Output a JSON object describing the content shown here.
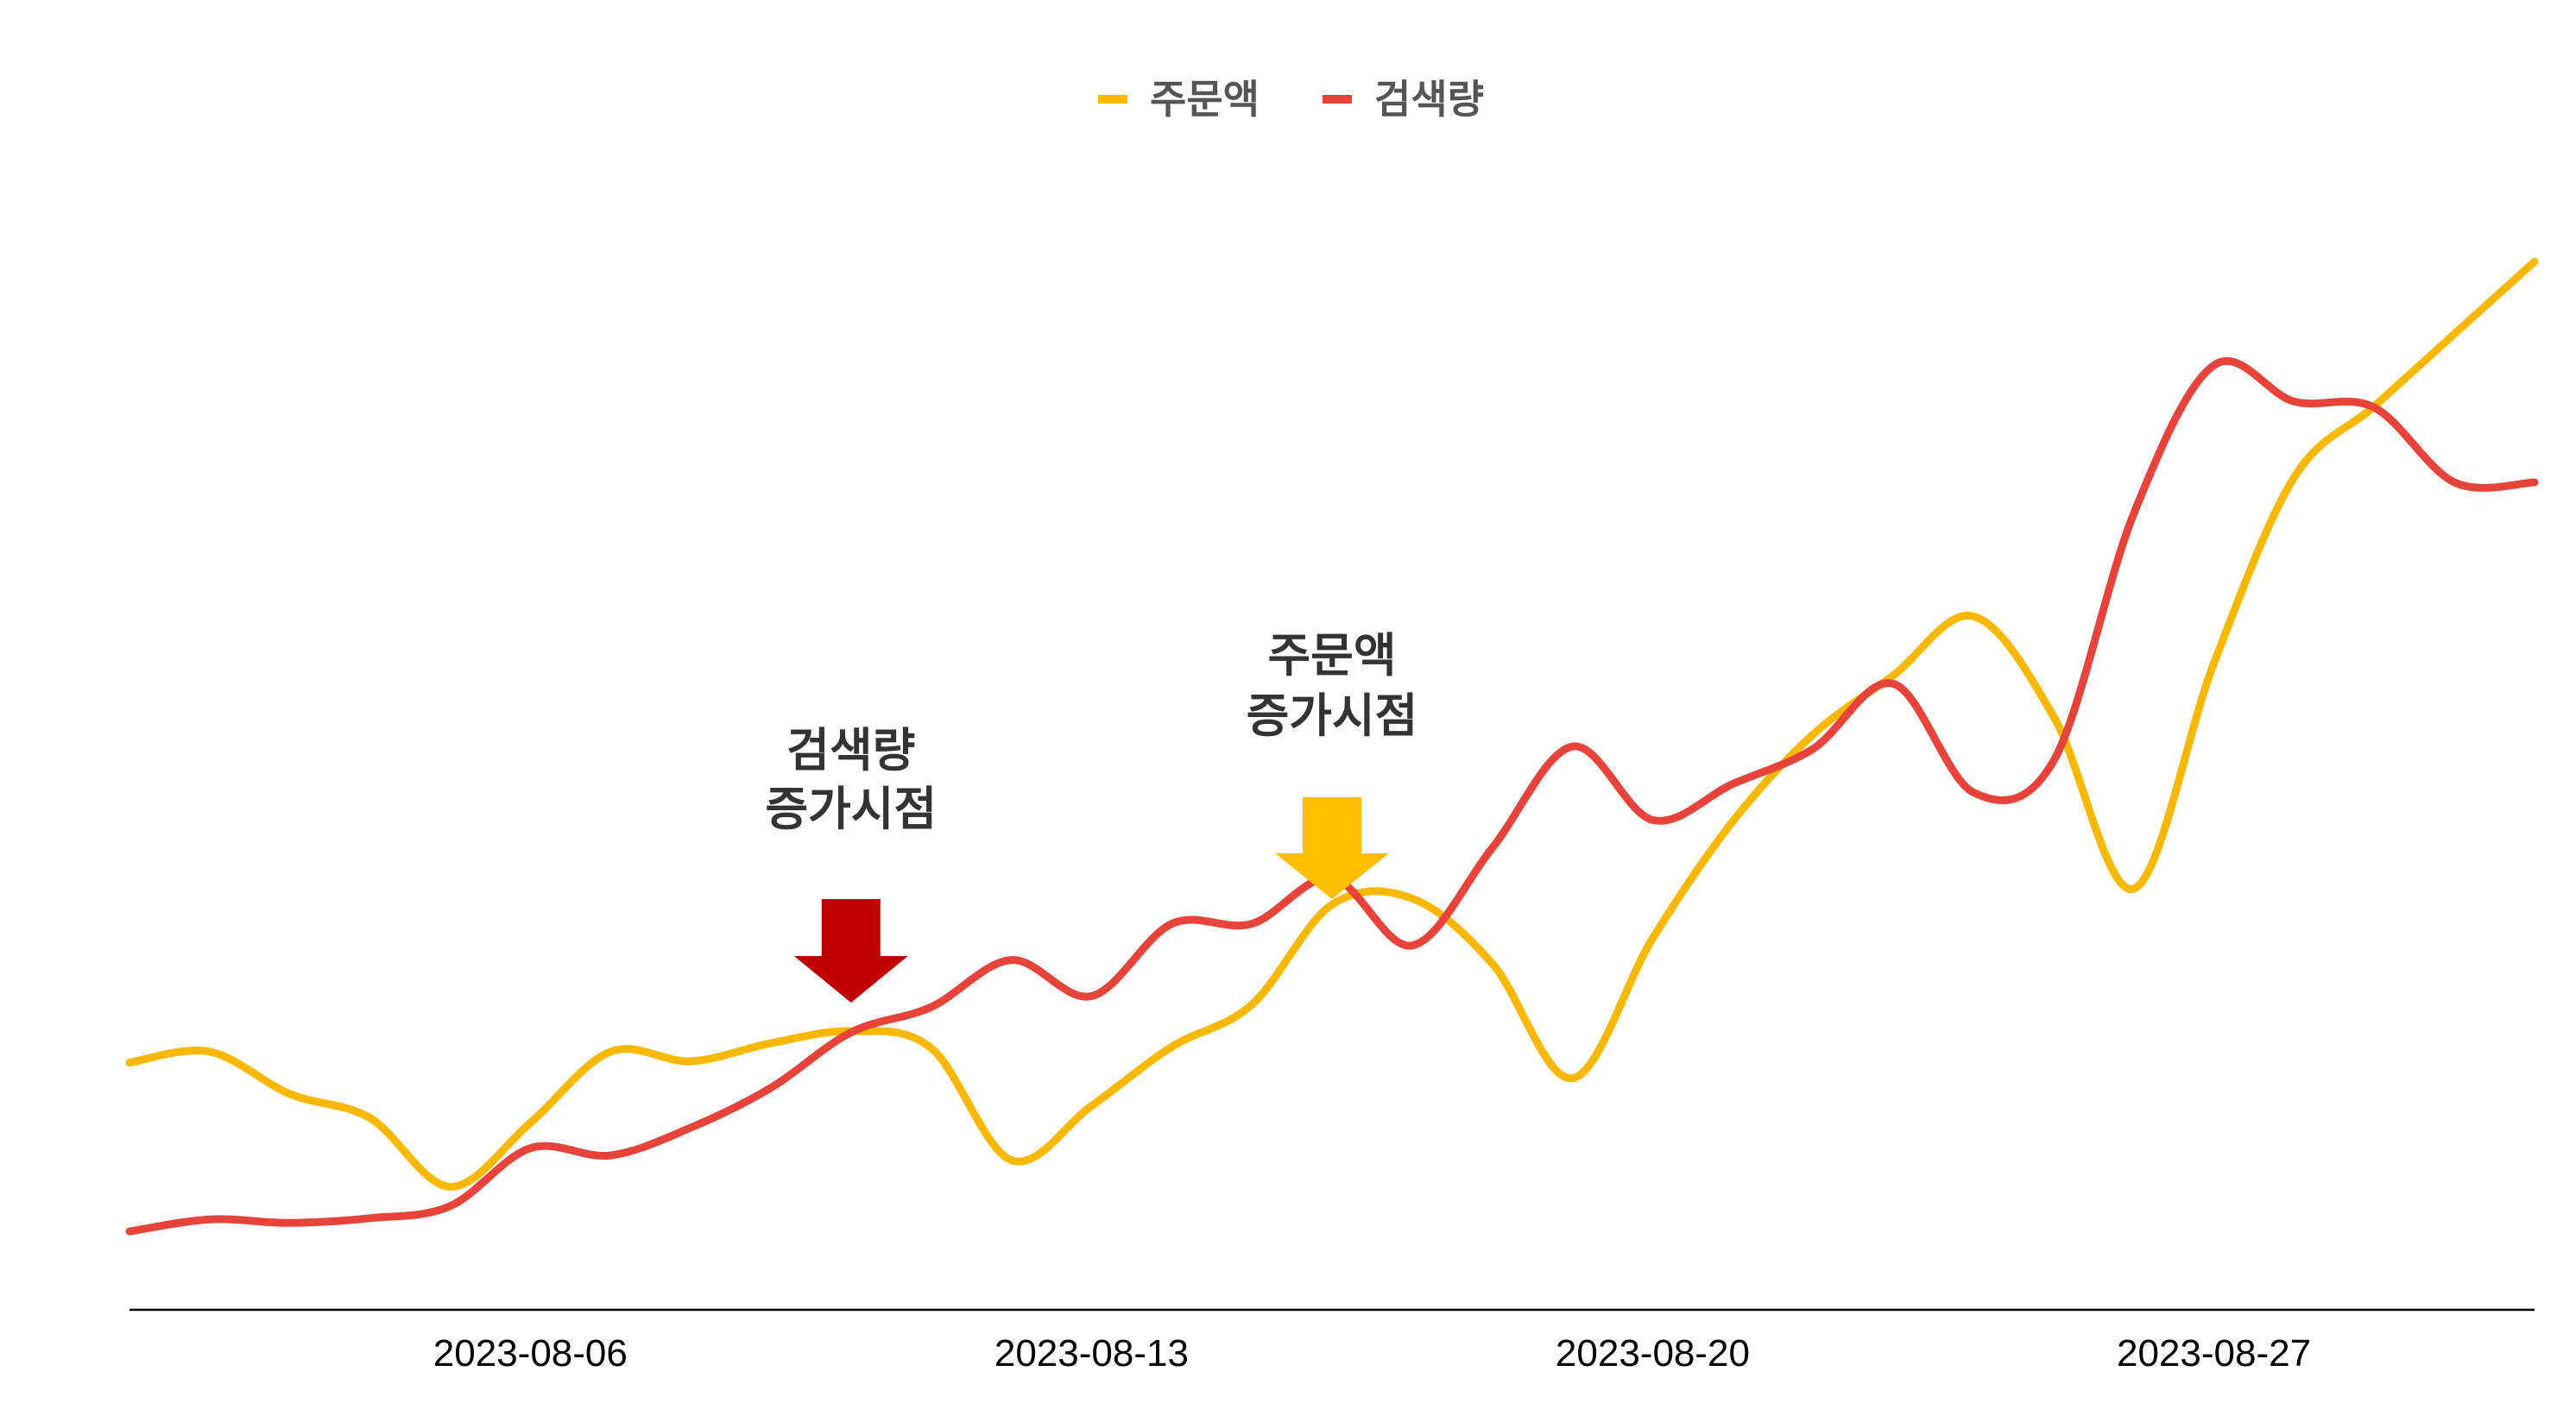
{
  "colors": {
    "order": "#F8B800",
    "search": "#E8433A",
    "search_arrow": "#C00000",
    "order_arrow": "#FFBF00"
  },
  "legend": [
    {
      "label": "주문액",
      "color": "#F8B800"
    },
    {
      "label": "검색량",
      "color": "#E8433A"
    }
  ],
  "annotations": [
    {
      "line1": "검색량",
      "line2": "증가시점",
      "date": "2023-08-10",
      "color": "#C00000"
    },
    {
      "line1": "주문액",
      "line2": "증가시점",
      "date": "2023-08-16",
      "color": "#FFBF00"
    }
  ],
  "chart_data": {
    "type": "line",
    "title": "",
    "xlabel": "",
    "ylabel": "",
    "x_start": "2023-08-01",
    "x_end": "2023-08-31",
    "x_ticks": [
      "2023-08-06",
      "2023-08-13",
      "2023-08-20",
      "2023-08-27"
    ],
    "ylim": [
      0,
      100
    ],
    "grid": false,
    "legend_position": "top-center",
    "x": [
      "2023-08-01",
      "2023-08-02",
      "2023-08-03",
      "2023-08-04",
      "2023-08-05",
      "2023-08-06",
      "2023-08-07",
      "2023-08-08",
      "2023-08-09",
      "2023-08-10",
      "2023-08-11",
      "2023-08-12",
      "2023-08-13",
      "2023-08-14",
      "2023-08-15",
      "2023-08-16",
      "2023-08-17",
      "2023-08-18",
      "2023-08-19",
      "2023-08-20",
      "2023-08-21",
      "2023-08-22",
      "2023-08-23",
      "2023-08-24",
      "2023-08-25",
      "2023-08-26",
      "2023-08-27",
      "2023-08-28",
      "2023-08-29",
      "2023-08-30",
      "2023-08-31"
    ],
    "series": [
      {
        "name": "주문액",
        "values": [
          20.5,
          21.4,
          17.9,
          15.9,
          10.2,
          15.5,
          21.4,
          20.6,
          22.1,
          23.1,
          21.7,
          12.4,
          16.9,
          21.8,
          25.3,
          33.6,
          34.1,
          28.7,
          19.2,
          30.8,
          40.5,
          47.7,
          52.6,
          57.5,
          49.2,
          34.9,
          53.6,
          69.0,
          74.9,
          80.9,
          86.9
        ]
      },
      {
        "name": "검색량",
        "values": [
          6.5,
          7.5,
          7.2,
          7.6,
          8.6,
          13.4,
          12.8,
          15.1,
          18.4,
          23.0,
          25.1,
          29.0,
          26.0,
          32.0,
          32.0,
          35.8,
          30.2,
          38.3,
          46.7,
          40.6,
          43.6,
          46.5,
          51.9,
          42.9,
          45.5,
          66.0,
          78.3,
          75.3,
          74.8,
          68.6,
          68.6
        ]
      }
    ]
  }
}
